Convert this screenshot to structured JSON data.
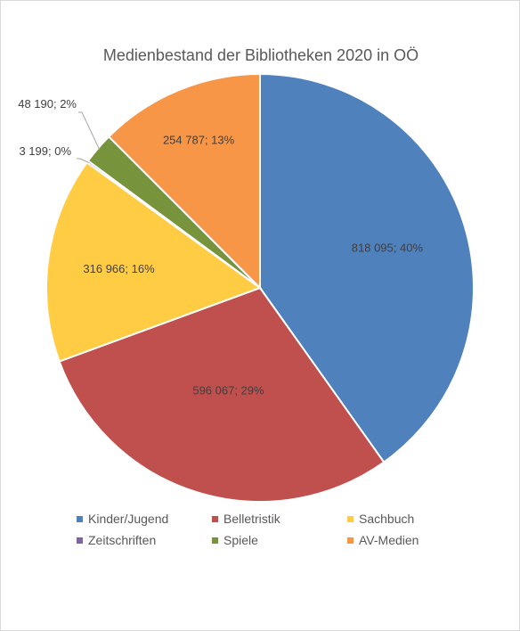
{
  "chart_data": {
    "type": "pie",
    "title": "Medienbestand der Bibliotheken 2020 in OÖ",
    "slices": [
      {
        "name": "Kinder/Jugend",
        "value": 818095,
        "label": "818 095; 40%",
        "color": "#4f81bd"
      },
      {
        "name": "Belletristik",
        "value": 596067,
        "label": "596 067; 29%",
        "color": "#c0504d"
      },
      {
        "name": "Sachbuch",
        "value": 316966,
        "label": "316 966; 16%",
        "color": "#ffcc44"
      },
      {
        "name": "Zeitschriften",
        "value": 3199,
        "label": "3 199; 0%",
        "color": "#8064a2"
      },
      {
        "name": "Spiele",
        "value": 48190,
        "label": "48 190; 2%",
        "color": "#77933c"
      },
      {
        "name": "AV-Medien",
        "value": 254787,
        "label": "254 787; 13%",
        "color": "#f79646"
      }
    ],
    "legend_position": "bottom",
    "legend_order": [
      "Kinder/Jugend",
      "Belletristik",
      "Sachbuch",
      "Zeitschriften",
      "Spiele",
      "AV-Medien"
    ],
    "start_angle_deg": 0,
    "direction": "clockwise"
  },
  "style": {
    "label_color": "#404040",
    "leader_color": "#a6a6a6"
  }
}
